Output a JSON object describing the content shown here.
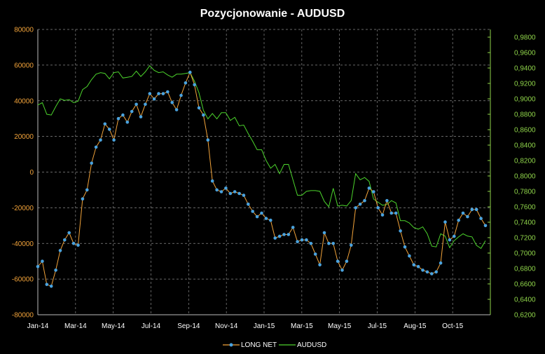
{
  "chart_data": {
    "type": "line",
    "title": "Pozycjonowanie - AUDUSD",
    "x_tick_labels": [
      "Jan-14",
      "Mar-14",
      "May-14",
      "Jul-14",
      "Sep-14",
      "Nov-14",
      "Jan-15",
      "Mar-15",
      "May-15",
      "Jul-15",
      "Aug-15",
      "Oct-15"
    ],
    "y_left": {
      "min": -80000,
      "max": 80000,
      "ticks": [
        80000,
        60000,
        40000,
        20000,
        0,
        -20000,
        -40000,
        -60000,
        -80000
      ]
    },
    "y_right": {
      "min": 0.62,
      "max": 0.99,
      "ticks": [
        "0,9800",
        "0,9600",
        "0,9400",
        "0,9200",
        "0,9000",
        "0,8800",
        "0,8600",
        "0,8400",
        "0,8200",
        "0,8000",
        "0,7800",
        "0,7600",
        "0,7400",
        "0,7200",
        "0,7000",
        "0,6800",
        "0,6600",
        "0,6400",
        "0,6200"
      ]
    },
    "grid": true,
    "legend_position": "bottom",
    "series": [
      {
        "name": "LONG NET",
        "axis": "left",
        "color": "#f2a33a",
        "marker_color": "#4aa3df",
        "values": [
          -53000,
          -50000,
          -63000,
          -64000,
          -55000,
          -44000,
          -38000,
          -34000,
          -40000,
          -41000,
          -15000,
          -10000,
          5000,
          14000,
          18000,
          27000,
          24000,
          18000,
          30000,
          32000,
          28000,
          34000,
          38000,
          31000,
          38000,
          44000,
          41000,
          44000,
          44000,
          45000,
          39000,
          35000,
          43000,
          50000,
          56000,
          49000,
          36000,
          32000,
          18000,
          -5000,
          -10000,
          -11000,
          -9000,
          -12000,
          -11000,
          -12000,
          -13000,
          -18000,
          -22000,
          -25000,
          -23000,
          -26000,
          -27000,
          -37000,
          -36000,
          -35000,
          -35000,
          -31000,
          -39000,
          -38000,
          -38000,
          -40000,
          -46000,
          -52000,
          -34000,
          -40000,
          -40000,
          -50000,
          -55000,
          -50000,
          -41000,
          -20000,
          -18000,
          -16000,
          -9000,
          -11000,
          -20000,
          -24000,
          -16000,
          -23000,
          -23000,
          -33000,
          -42000,
          -47000,
          -52000,
          -53000,
          -55000,
          -56000,
          -57000,
          -56000,
          -51000,
          -28000,
          -38000,
          -36000,
          -27000,
          -23000,
          -25000,
          -21000,
          -21000,
          -26000,
          -30000
        ]
      },
      {
        "name": "AUDUSD",
        "axis": "right",
        "color": "#4cd42c",
        "values": [
          0.892,
          0.895,
          0.88,
          0.879,
          0.89,
          0.9,
          0.898,
          0.899,
          0.895,
          0.897,
          0.912,
          0.916,
          0.925,
          0.932,
          0.934,
          0.933,
          0.926,
          0.934,
          0.935,
          0.927,
          0.928,
          0.929,
          0.936,
          0.929,
          0.935,
          0.943,
          0.937,
          0.934,
          0.935,
          0.931,
          0.928,
          0.932,
          0.932,
          0.933,
          0.934,
          0.923,
          0.908,
          0.885,
          0.874,
          0.881,
          0.874,
          0.882,
          0.882,
          0.872,
          0.876,
          0.865,
          0.866,
          0.855,
          0.845,
          0.834,
          0.834,
          0.82,
          0.81,
          0.815,
          0.803,
          0.815,
          0.815,
          0.795,
          0.775,
          0.775,
          0.78,
          0.781,
          0.781,
          0.78,
          0.767,
          0.76,
          0.784,
          0.761,
          0.762,
          0.761,
          0.768,
          0.803,
          0.795,
          0.798,
          0.793,
          0.77,
          0.766,
          0.762,
          0.763,
          0.768,
          0.765,
          0.742,
          0.742,
          0.739,
          0.733,
          0.731,
          0.734,
          0.725,
          0.709,
          0.708,
          0.725,
          0.722,
          0.707,
          0.716,
          0.721,
          0.725,
          0.722,
          0.721,
          0.71,
          0.706,
          0.716
        ]
      }
    ]
  }
}
